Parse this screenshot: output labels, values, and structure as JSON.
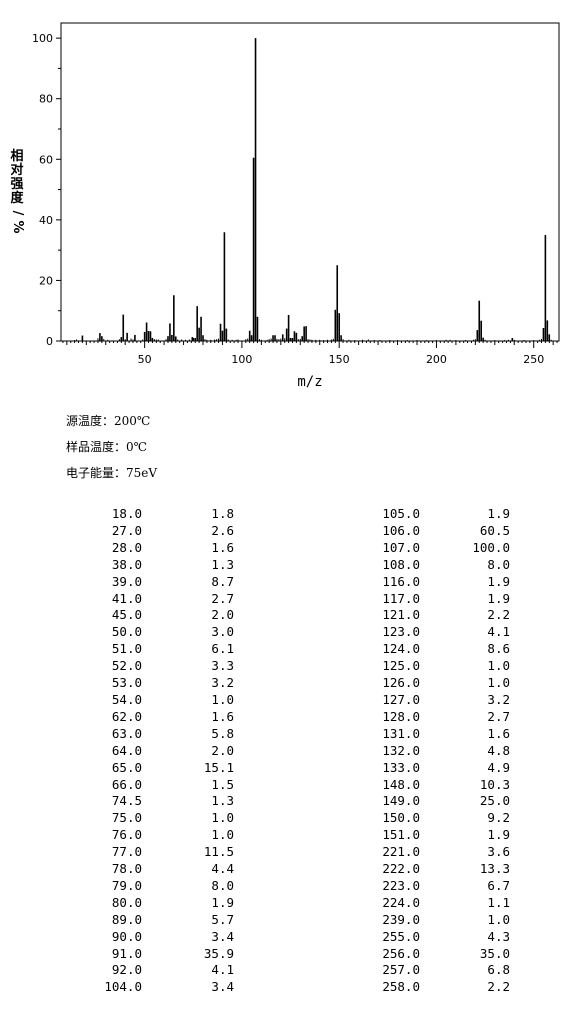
{
  "chart_data": {
    "type": "bar",
    "xlabel": "m/z",
    "ylabel": "相对强度/%",
    "xlim": [
      7,
      263
    ],
    "ylim": [
      0,
      105
    ],
    "xticks": [
      50,
      100,
      150,
      200,
      250
    ],
    "yticks": [
      0,
      20,
      40,
      60,
      80,
      100
    ],
    "grid": false,
    "major_peaks": [
      {
        "mz": 18.0,
        "rel": 1.8
      },
      {
        "mz": 27.0,
        "rel": 2.6
      },
      {
        "mz": 28.0,
        "rel": 1.6
      },
      {
        "mz": 38.0,
        "rel": 1.3
      },
      {
        "mz": 39.0,
        "rel": 8.7
      },
      {
        "mz": 41.0,
        "rel": 2.7
      },
      {
        "mz": 45.0,
        "rel": 2.0
      },
      {
        "mz": 50.0,
        "rel": 3.0
      },
      {
        "mz": 51.0,
        "rel": 6.1
      },
      {
        "mz": 52.0,
        "rel": 3.3
      },
      {
        "mz": 53.0,
        "rel": 3.2
      },
      {
        "mz": 54.0,
        "rel": 1.0
      },
      {
        "mz": 62.0,
        "rel": 1.6
      },
      {
        "mz": 63.0,
        "rel": 5.8
      },
      {
        "mz": 64.0,
        "rel": 2.0
      },
      {
        "mz": 65.0,
        "rel": 15.1
      },
      {
        "mz": 66.0,
        "rel": 1.5
      },
      {
        "mz": 74.5,
        "rel": 1.3
      },
      {
        "mz": 75.0,
        "rel": 1.0
      },
      {
        "mz": 76.0,
        "rel": 1.0
      },
      {
        "mz": 77.0,
        "rel": 11.5
      },
      {
        "mz": 78.0,
        "rel": 4.4
      },
      {
        "mz": 79.0,
        "rel": 8.0
      },
      {
        "mz": 80.0,
        "rel": 1.9
      },
      {
        "mz": 89.0,
        "rel": 5.7
      },
      {
        "mz": 90.0,
        "rel": 3.4
      },
      {
        "mz": 91.0,
        "rel": 35.9
      },
      {
        "mz": 92.0,
        "rel": 4.1
      },
      {
        "mz": 104.0,
        "rel": 3.4
      },
      {
        "mz": 105.0,
        "rel": 1.9
      },
      {
        "mz": 106.0,
        "rel": 60.5
      },
      {
        "mz": 107.0,
        "rel": 100.0
      },
      {
        "mz": 108.0,
        "rel": 8.0
      },
      {
        "mz": 116.0,
        "rel": 1.9
      },
      {
        "mz": 117.0,
        "rel": 1.9
      },
      {
        "mz": 121.0,
        "rel": 2.2
      },
      {
        "mz": 123.0,
        "rel": 4.1
      },
      {
        "mz": 124.0,
        "rel": 8.6
      },
      {
        "mz": 125.0,
        "rel": 1.0
      },
      {
        "mz": 126.0,
        "rel": 1.0
      },
      {
        "mz": 127.0,
        "rel": 3.2
      },
      {
        "mz": 128.0,
        "rel": 2.7
      },
      {
        "mz": 131.0,
        "rel": 1.6
      },
      {
        "mz": 132.0,
        "rel": 4.8
      },
      {
        "mz": 133.0,
        "rel": 4.9
      },
      {
        "mz": 148.0,
        "rel": 10.3
      },
      {
        "mz": 149.0,
        "rel": 25.0
      },
      {
        "mz": 150.0,
        "rel": 9.2
      },
      {
        "mz": 151.0,
        "rel": 1.9
      },
      {
        "mz": 221.0,
        "rel": 3.6
      },
      {
        "mz": 222.0,
        "rel": 13.3
      },
      {
        "mz": 223.0,
        "rel": 6.7
      },
      {
        "mz": 224.0,
        "rel": 1.1
      },
      {
        "mz": 239.0,
        "rel": 1.0
      },
      {
        "mz": 255.0,
        "rel": 4.3
      },
      {
        "mz": 256.0,
        "rel": 35.0
      },
      {
        "mz": 257.0,
        "rel": 6.8
      },
      {
        "mz": 258.0,
        "rel": 2.2
      }
    ],
    "minor_peaks": [
      {
        "mz": 14,
        "rel": 0.3
      },
      {
        "mz": 15,
        "rel": 0.5
      },
      {
        "mz": 26,
        "rel": 0.9
      },
      {
        "mz": 29,
        "rel": 0.7
      },
      {
        "mz": 31,
        "rel": 0.4
      },
      {
        "mz": 37,
        "rel": 0.6
      },
      {
        "mz": 40,
        "rel": 0.6
      },
      {
        "mz": 43,
        "rel": 0.8
      },
      {
        "mz": 44,
        "rel": 0.5
      },
      {
        "mz": 49,
        "rel": 0.5
      },
      {
        "mz": 55,
        "rel": 0.6
      },
      {
        "mz": 56,
        "rel": 0.5
      },
      {
        "mz": 57,
        "rel": 0.5
      },
      {
        "mz": 61,
        "rel": 0.6
      },
      {
        "mz": 67,
        "rel": 0.5
      },
      {
        "mz": 69,
        "rel": 0.5
      },
      {
        "mz": 71,
        "rel": 0.4
      },
      {
        "mz": 73,
        "rel": 0.5
      },
      {
        "mz": 81,
        "rel": 0.6
      },
      {
        "mz": 82,
        "rel": 0.4
      },
      {
        "mz": 84,
        "rel": 0.4
      },
      {
        "mz": 86,
        "rel": 0.5
      },
      {
        "mz": 87,
        "rel": 0.6
      },
      {
        "mz": 88,
        "rel": 0.8
      },
      {
        "mz": 93,
        "rel": 0.5
      },
      {
        "mz": 95,
        "rel": 0.4
      },
      {
        "mz": 97,
        "rel": 0.4
      },
      {
        "mz": 98,
        "rel": 0.5
      },
      {
        "mz": 102,
        "rel": 0.6
      },
      {
        "mz": 103,
        "rel": 0.8
      },
      {
        "mz": 109,
        "rel": 0.6
      },
      {
        "mz": 110,
        "rel": 0.4
      },
      {
        "mz": 113,
        "rel": 0.4
      },
      {
        "mz": 114,
        "rel": 0.6
      },
      {
        "mz": 115,
        "rel": 0.8
      },
      {
        "mz": 118,
        "rel": 0.7
      },
      {
        "mz": 119,
        "rel": 0.6
      },
      {
        "mz": 120,
        "rel": 0.8
      },
      {
        "mz": 122,
        "rel": 0.9
      },
      {
        "mz": 129,
        "rel": 0.6
      },
      {
        "mz": 130,
        "rel": 0.7
      },
      {
        "mz": 134,
        "rel": 0.6
      },
      {
        "mz": 135,
        "rel": 0.5
      },
      {
        "mz": 136,
        "rel": 0.4
      },
      {
        "mz": 138,
        "rel": 0.4
      },
      {
        "mz": 140,
        "rel": 0.4
      },
      {
        "mz": 142,
        "rel": 0.3
      },
      {
        "mz": 144,
        "rel": 0.4
      },
      {
        "mz": 146,
        "rel": 0.5
      },
      {
        "mz": 147,
        "rel": 0.7
      },
      {
        "mz": 152,
        "rel": 0.6
      },
      {
        "mz": 155,
        "rel": 0.4
      },
      {
        "mz": 158,
        "rel": 0.3
      },
      {
        "mz": 162,
        "rel": 0.4
      },
      {
        "mz": 165,
        "rel": 0.5
      },
      {
        "mz": 168,
        "rel": 0.3
      },
      {
        "mz": 171,
        "rel": 0.3
      },
      {
        "mz": 176,
        "rel": 0.3
      },
      {
        "mz": 180,
        "rel": 0.3
      },
      {
        "mz": 185,
        "rel": 0.3
      },
      {
        "mz": 190,
        "rel": 0.3
      },
      {
        "mz": 195,
        "rel": 0.3
      },
      {
        "mz": 200,
        "rel": 0.3
      },
      {
        "mz": 205,
        "rel": 0.4
      },
      {
        "mz": 207,
        "rel": 0.4
      },
      {
        "mz": 210,
        "rel": 0.3
      },
      {
        "mz": 215,
        "rel": 0.3
      },
      {
        "mz": 219,
        "rel": 0.4
      },
      {
        "mz": 220,
        "rel": 0.6
      },
      {
        "mz": 225,
        "rel": 0.4
      },
      {
        "mz": 230,
        "rel": 0.3
      },
      {
        "mz": 235,
        "rel": 0.3
      },
      {
        "mz": 237,
        "rel": 0.4
      },
      {
        "mz": 240,
        "rel": 0.4
      },
      {
        "mz": 245,
        "rel": 0.3
      },
      {
        "mz": 250,
        "rel": 0.3
      },
      {
        "mz": 253,
        "rel": 0.4
      },
      {
        "mz": 254,
        "rel": 0.7
      },
      {
        "mz": 259,
        "rel": 0.4
      }
    ]
  },
  "conditions": {
    "source_temp": "源温度：200℃",
    "sample_temp": "样品温度：0℃",
    "electron_energy": "电子能量：75eV"
  },
  "peak_table": {
    "left": [
      [
        "18.0",
        "1.8"
      ],
      [
        "27.0",
        "2.6"
      ],
      [
        "28.0",
        "1.6"
      ],
      [
        "38.0",
        "1.3"
      ],
      [
        "39.0",
        "8.7"
      ],
      [
        "41.0",
        "2.7"
      ],
      [
        "45.0",
        "2.0"
      ],
      [
        "50.0",
        "3.0"
      ],
      [
        "51.0",
        "6.1"
      ],
      [
        "52.0",
        "3.3"
      ],
      [
        "53.0",
        "3.2"
      ],
      [
        "54.0",
        "1.0"
      ],
      [
        "62.0",
        "1.6"
      ],
      [
        "63.0",
        "5.8"
      ],
      [
        "64.0",
        "2.0"
      ],
      [
        "65.0",
        "15.1"
      ],
      [
        "66.0",
        "1.5"
      ],
      [
        "74.5",
        "1.3"
      ],
      [
        "75.0",
        "1.0"
      ],
      [
        "76.0",
        "1.0"
      ],
      [
        "77.0",
        "11.5"
      ],
      [
        "78.0",
        "4.4"
      ],
      [
        "79.0",
        "8.0"
      ],
      [
        "80.0",
        "1.9"
      ],
      [
        "89.0",
        "5.7"
      ],
      [
        "90.0",
        "3.4"
      ],
      [
        "91.0",
        "35.9"
      ],
      [
        "92.0",
        "4.1"
      ],
      [
        "104.0",
        "3.4"
      ]
    ],
    "right": [
      [
        "105.0",
        "1.9"
      ],
      [
        "106.0",
        "60.5"
      ],
      [
        "107.0",
        "100.0"
      ],
      [
        "108.0",
        "8.0"
      ],
      [
        "116.0",
        "1.9"
      ],
      [
        "117.0",
        "1.9"
      ],
      [
        "121.0",
        "2.2"
      ],
      [
        "123.0",
        "4.1"
      ],
      [
        "124.0",
        "8.6"
      ],
      [
        "125.0",
        "1.0"
      ],
      [
        "126.0",
        "1.0"
      ],
      [
        "127.0",
        "3.2"
      ],
      [
        "128.0",
        "2.7"
      ],
      [
        "131.0",
        "1.6"
      ],
      [
        "132.0",
        "4.8"
      ],
      [
        "133.0",
        "4.9"
      ],
      [
        "148.0",
        "10.3"
      ],
      [
        "149.0",
        "25.0"
      ],
      [
        "150.0",
        "9.2"
      ],
      [
        "151.0",
        "1.9"
      ],
      [
        "221.0",
        "3.6"
      ],
      [
        "222.0",
        "13.3"
      ],
      [
        "223.0",
        "6.7"
      ],
      [
        "224.0",
        "1.1"
      ],
      [
        "239.0",
        "1.0"
      ],
      [
        "255.0",
        "4.3"
      ],
      [
        "256.0",
        "35.0"
      ],
      [
        "257.0",
        "6.8"
      ],
      [
        "258.0",
        "2.2"
      ]
    ]
  }
}
